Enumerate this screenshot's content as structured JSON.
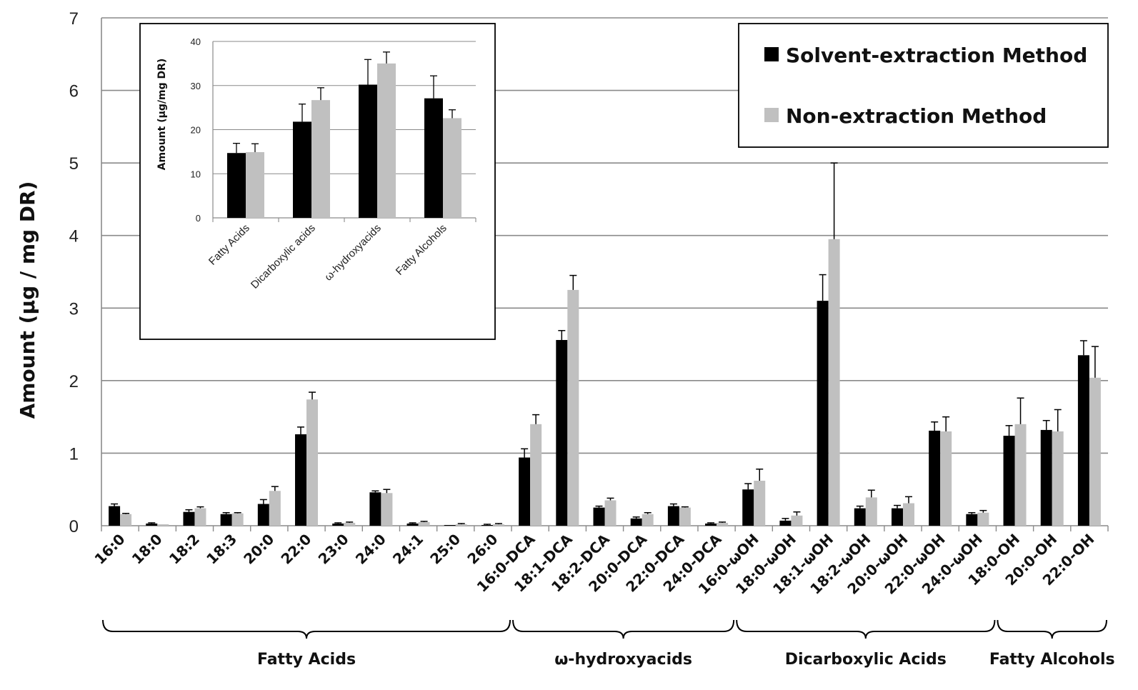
{
  "chart_data": [
    {
      "type": "bar",
      "title": "",
      "xlabel": "",
      "ylabel": "Amount (µg / mg DR)",
      "ylim": [
        0,
        7
      ],
      "yticks": [
        "0",
        "1",
        "2",
        "3",
        "4",
        "5",
        "6",
        "7"
      ],
      "grid": true,
      "legend_position": "top-right",
      "categories": [
        "16:0",
        "18:0",
        "18:2",
        "18:3",
        "20:0",
        "22:0",
        "23:0",
        "24:0",
        "24:1",
        "25:0",
        "26:0",
        "16:0-DCA",
        "18:1-DCA",
        "18:2-DCA",
        "20:0-DCA",
        "22:0-DCA",
        "24:0-DCA",
        "16:0-ωOH",
        "18:0-ωOH",
        "18:1-ωOH",
        "18:2-ωOH",
        "20:0-ωOH",
        "22:0-ωOH",
        "24:0-ωOH",
        "18:0-OH",
        "20:0-OH",
        "22:0-OH"
      ],
      "series": [
        {
          "name": "Solvent-extraction Method",
          "color": "#000000",
          "values": [
            0.27,
            0.03,
            0.19,
            0.16,
            0.3,
            1.26,
            0.03,
            0.46,
            0.03,
            0.01,
            0.01,
            0.94,
            2.56,
            0.25,
            0.1,
            0.27,
            0.03,
            0.5,
            0.07,
            3.1,
            0.24,
            0.24,
            1.31,
            0.16,
            1.24,
            1.32,
            2.35
          ],
          "errors": [
            0.03,
            0.01,
            0.03,
            0.02,
            0.06,
            0.1,
            0.01,
            0.02,
            0.01,
            0.0,
            0.01,
            0.12,
            0.13,
            0.02,
            0.02,
            0.03,
            0.01,
            0.08,
            0.03,
            0.36,
            0.03,
            0.04,
            0.12,
            0.02,
            0.14,
            0.13,
            0.2
          ]
        },
        {
          "name": "Non-extraction Method",
          "color": "#c0c0c0",
          "values": [
            0.16,
            0.02,
            0.24,
            0.17,
            0.48,
            1.74,
            0.04,
            0.45,
            0.05,
            0.02,
            0.02,
            1.4,
            3.25,
            0.35,
            0.16,
            0.25,
            0.04,
            0.62,
            0.14,
            3.95,
            0.39,
            0.31,
            1.3,
            0.18,
            1.4,
            1.3,
            2.04
          ],
          "errors": [
            0.01,
            0.0,
            0.02,
            0.01,
            0.06,
            0.1,
            0.01,
            0.05,
            0.01,
            0.01,
            0.01,
            0.13,
            0.2,
            0.03,
            0.02,
            0.01,
            0.01,
            0.16,
            0.05,
            1.05,
            0.1,
            0.09,
            0.2,
            0.03,
            0.36,
            0.3,
            0.43
          ]
        }
      ],
      "groups": [
        {
          "label": "Fatty Acids",
          "from": 0,
          "to": 10
        },
        {
          "label": "ω-hydroxyacids",
          "from": 11,
          "to": 16
        },
        {
          "label": "Dicarboxylic Acids",
          "from": 17,
          "to": 23
        },
        {
          "label": "Fatty Alcohols",
          "from": 24,
          "to": 26
        }
      ]
    },
    {
      "type": "bar",
      "title": "",
      "xlabel": "",
      "ylabel": "Amount (µg/mg DR)",
      "ylim": [
        0,
        40
      ],
      "yticks": [
        "0",
        "10",
        "20",
        "30",
        "40"
      ],
      "categories": [
        "Fatty Acids",
        "Dicarboxylic acids",
        "ω-hydroxyacids",
        "Fatty Alcohols"
      ],
      "series": [
        {
          "name": "Solvent-extraction Method",
          "color": "#000000",
          "values": [
            14.7,
            21.8,
            30.2,
            27.1
          ],
          "errors": [
            2.2,
            4.0,
            5.7,
            5.1
          ]
        },
        {
          "name": "Non-extraction Method",
          "color": "#c0c0c0",
          "values": [
            14.9,
            26.7,
            35.0,
            22.6
          ],
          "errors": [
            1.9,
            2.8,
            2.6,
            1.9
          ]
        }
      ]
    }
  ]
}
